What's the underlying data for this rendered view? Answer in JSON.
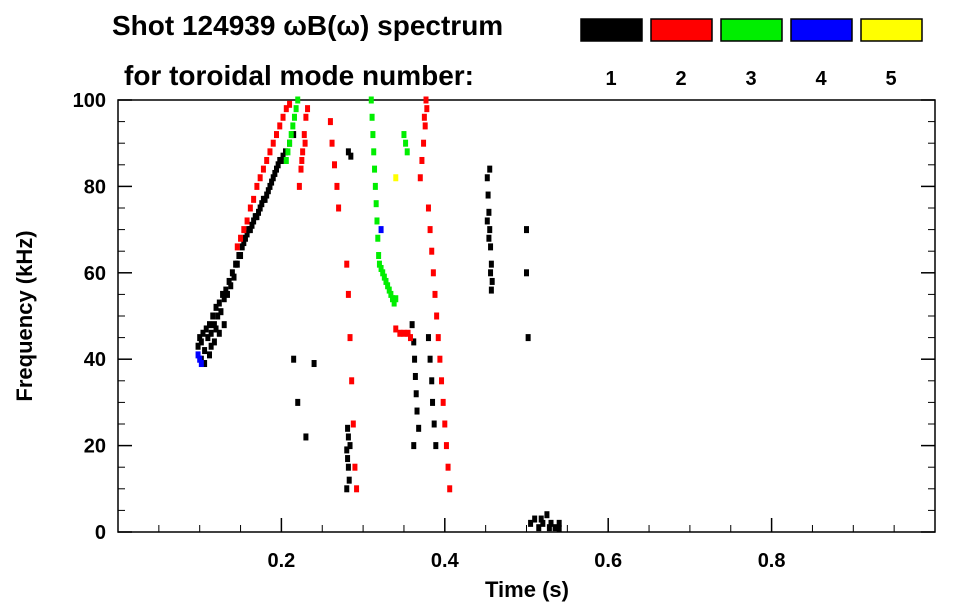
{
  "chart_data": {
    "type": "scatter",
    "title_line1": "Shot 124939 ωB(ω) spectrum",
    "title_line2": "for toroidal mode number:",
    "xlabel": "Time (s)",
    "ylabel": "Frequency (kHz)",
    "xlim": [
      0.0,
      1.0
    ],
    "ylim": [
      0,
      100
    ],
    "xticks": [
      {
        "value": 0.2,
        "label": "0.2"
      },
      {
        "value": 0.4,
        "label": "0.4"
      },
      {
        "value": 0.6,
        "label": "0.6"
      },
      {
        "value": 0.8,
        "label": "0.8"
      }
    ],
    "yticks": [
      {
        "value": 0,
        "label": "0"
      },
      {
        "value": 20,
        "label": "20"
      },
      {
        "value": 40,
        "label": "40"
      },
      {
        "value": 60,
        "label": "60"
      },
      {
        "value": 80,
        "label": "80"
      },
      {
        "value": 100,
        "label": "100"
      }
    ],
    "legend": [
      {
        "label": "1",
        "color": "#000000"
      },
      {
        "label": "2",
        "color": "#ff0000"
      },
      {
        "label": "3",
        "color": "#00ee00"
      },
      {
        "label": "4",
        "color": "#0000ff"
      },
      {
        "label": "5",
        "color": "#ffff00"
      }
    ],
    "series": [
      {
        "mode": "1",
        "color": "#000000",
        "points": [
          [
            0.098,
            43
          ],
          [
            0.1,
            45
          ],
          [
            0.102,
            44
          ],
          [
            0.104,
            46
          ],
          [
            0.106,
            42
          ],
          [
            0.108,
            47
          ],
          [
            0.11,
            45
          ],
          [
            0.112,
            48
          ],
          [
            0.114,
            46
          ],
          [
            0.116,
            50
          ],
          [
            0.118,
            48
          ],
          [
            0.12,
            52
          ],
          [
            0.122,
            50
          ],
          [
            0.124,
            53
          ],
          [
            0.126,
            51
          ],
          [
            0.128,
            55
          ],
          [
            0.13,
            54
          ],
          [
            0.132,
            56
          ],
          [
            0.134,
            55
          ],
          [
            0.136,
            58
          ],
          [
            0.138,
            57
          ],
          [
            0.14,
            60
          ],
          [
            0.142,
            59
          ],
          [
            0.144,
            62
          ],
          [
            0.146,
            62
          ],
          [
            0.148,
            64
          ],
          [
            0.15,
            64
          ],
          [
            0.152,
            66
          ],
          [
            0.154,
            67
          ],
          [
            0.156,
            68
          ],
          [
            0.158,
            69
          ],
          [
            0.16,
            70
          ],
          [
            0.162,
            70
          ],
          [
            0.164,
            71
          ],
          [
            0.166,
            72
          ],
          [
            0.168,
            73
          ],
          [
            0.17,
            73
          ],
          [
            0.172,
            74
          ],
          [
            0.174,
            75
          ],
          [
            0.176,
            76
          ],
          [
            0.178,
            77
          ],
          [
            0.18,
            77
          ],
          [
            0.182,
            78
          ],
          [
            0.184,
            79
          ],
          [
            0.186,
            80
          ],
          [
            0.188,
            81
          ],
          [
            0.19,
            82
          ],
          [
            0.192,
            83
          ],
          [
            0.194,
            84
          ],
          [
            0.196,
            85
          ],
          [
            0.198,
            86
          ],
          [
            0.2,
            86
          ],
          [
            0.202,
            87
          ],
          [
            0.205,
            88
          ],
          [
            0.21,
            90
          ],
          [
            0.215,
            92
          ],
          [
            0.102,
            40
          ],
          [
            0.106,
            39
          ],
          [
            0.112,
            41
          ],
          [
            0.118,
            44
          ],
          [
            0.124,
            46
          ],
          [
            0.13,
            48
          ],
          [
            0.114,
            43
          ],
          [
            0.12,
            47
          ],
          [
            0.28,
            19
          ],
          [
            0.281,
            17
          ],
          [
            0.282,
            15
          ],
          [
            0.282,
            22
          ],
          [
            0.283,
            12
          ],
          [
            0.28,
            10
          ],
          [
            0.281,
            24
          ],
          [
            0.284,
            20
          ],
          [
            0.282,
            88
          ],
          [
            0.285,
            87
          ],
          [
            0.452,
            82
          ],
          [
            0.453,
            78
          ],
          [
            0.454,
            74
          ],
          [
            0.455,
            70
          ],
          [
            0.456,
            66
          ],
          [
            0.457,
            62
          ],
          [
            0.458,
            58
          ],
          [
            0.455,
            84
          ],
          [
            0.454,
            68
          ],
          [
            0.456,
            60
          ],
          [
            0.457,
            56
          ],
          [
            0.452,
            72
          ],
          [
            0.36,
            48
          ],
          [
            0.362,
            44
          ],
          [
            0.363,
            40
          ],
          [
            0.364,
            36
          ],
          [
            0.365,
            32
          ],
          [
            0.366,
            28
          ],
          [
            0.368,
            24
          ],
          [
            0.362,
            20
          ],
          [
            0.38,
            45
          ],
          [
            0.382,
            40
          ],
          [
            0.384,
            35
          ],
          [
            0.385,
            30
          ],
          [
            0.387,
            25
          ],
          [
            0.389,
            20
          ],
          [
            0.505,
            2
          ],
          [
            0.51,
            3
          ],
          [
            0.515,
            1
          ],
          [
            0.52,
            2
          ],
          [
            0.525,
            4
          ],
          [
            0.53,
            2
          ],
          [
            0.535,
            1
          ],
          [
            0.54,
            2
          ],
          [
            0.54,
            0.8
          ],
          [
            0.528,
            1
          ],
          [
            0.518,
            3
          ],
          [
            0.5,
            70
          ],
          [
            0.5,
            60
          ],
          [
            0.502,
            45
          ],
          [
            0.215,
            40
          ],
          [
            0.24,
            39
          ],
          [
            0.22,
            30
          ],
          [
            0.23,
            22
          ]
        ]
      },
      {
        "mode": "2",
        "color": "#ff0000",
        "points": [
          [
            0.146,
            66
          ],
          [
            0.15,
            68
          ],
          [
            0.154,
            70
          ],
          [
            0.158,
            72
          ],
          [
            0.162,
            75
          ],
          [
            0.166,
            77
          ],
          [
            0.17,
            80
          ],
          [
            0.174,
            82
          ],
          [
            0.178,
            84
          ],
          [
            0.182,
            86
          ],
          [
            0.186,
            88
          ],
          [
            0.19,
            90
          ],
          [
            0.194,
            92
          ],
          [
            0.198,
            94
          ],
          [
            0.202,
            96
          ],
          [
            0.206,
            98
          ],
          [
            0.21,
            99
          ],
          [
            0.222,
            80
          ],
          [
            0.224,
            84
          ],
          [
            0.226,
            88
          ],
          [
            0.228,
            92
          ],
          [
            0.23,
            96
          ],
          [
            0.232,
            98
          ],
          [
            0.225,
            86
          ],
          [
            0.229,
            90
          ],
          [
            0.26,
            95
          ],
          [
            0.262,
            90
          ],
          [
            0.265,
            85
          ],
          [
            0.268,
            80
          ],
          [
            0.27,
            75
          ],
          [
            0.37,
            82
          ],
          [
            0.372,
            86
          ],
          [
            0.374,
            90
          ],
          [
            0.376,
            94
          ],
          [
            0.378,
            98
          ],
          [
            0.375,
            96
          ],
          [
            0.377,
            100
          ],
          [
            0.38,
            75
          ],
          [
            0.382,
            70
          ],
          [
            0.384,
            65
          ],
          [
            0.386,
            60
          ],
          [
            0.388,
            55
          ],
          [
            0.39,
            50
          ],
          [
            0.392,
            45
          ],
          [
            0.394,
            40
          ],
          [
            0.396,
            35
          ],
          [
            0.398,
            30
          ],
          [
            0.4,
            25
          ],
          [
            0.402,
            20
          ],
          [
            0.404,
            15
          ],
          [
            0.406,
            10
          ],
          [
            0.34,
            47
          ],
          [
            0.345,
            46
          ],
          [
            0.35,
            46
          ],
          [
            0.355,
            46
          ],
          [
            0.358,
            45
          ],
          [
            0.28,
            62
          ],
          [
            0.282,
            55
          ],
          [
            0.284,
            45
          ],
          [
            0.286,
            35
          ],
          [
            0.288,
            25
          ],
          [
            0.29,
            15
          ],
          [
            0.292,
            10
          ]
        ]
      },
      {
        "mode": "3",
        "color": "#00ee00",
        "points": [
          [
            0.22,
            100
          ],
          [
            0.218,
            98
          ],
          [
            0.216,
            96
          ],
          [
            0.214,
            94
          ],
          [
            0.212,
            92
          ],
          [
            0.21,
            90
          ],
          [
            0.208,
            88
          ],
          [
            0.206,
            86
          ],
          [
            0.31,
            100
          ],
          [
            0.311,
            96
          ],
          [
            0.312,
            92
          ],
          [
            0.313,
            88
          ],
          [
            0.314,
            84
          ],
          [
            0.315,
            80
          ],
          [
            0.316,
            76
          ],
          [
            0.317,
            72
          ],
          [
            0.318,
            68
          ],
          [
            0.319,
            64
          ],
          [
            0.32,
            62
          ],
          [
            0.322,
            61
          ],
          [
            0.324,
            60
          ],
          [
            0.326,
            59
          ],
          [
            0.328,
            58
          ],
          [
            0.33,
            57
          ],
          [
            0.332,
            56
          ],
          [
            0.334,
            55
          ],
          [
            0.336,
            54
          ],
          [
            0.338,
            53
          ],
          [
            0.34,
            54
          ],
          [
            0.35,
            92
          ],
          [
            0.352,
            90
          ],
          [
            0.354,
            88
          ]
        ]
      },
      {
        "mode": "4",
        "color": "#0000ff",
        "points": [
          [
            0.098,
            41
          ],
          [
            0.1,
            40
          ],
          [
            0.102,
            39
          ],
          [
            0.322,
            70
          ]
        ]
      },
      {
        "mode": "5",
        "color": "#ffff00",
        "points": [
          [
            0.34,
            82
          ]
        ]
      }
    ]
  }
}
